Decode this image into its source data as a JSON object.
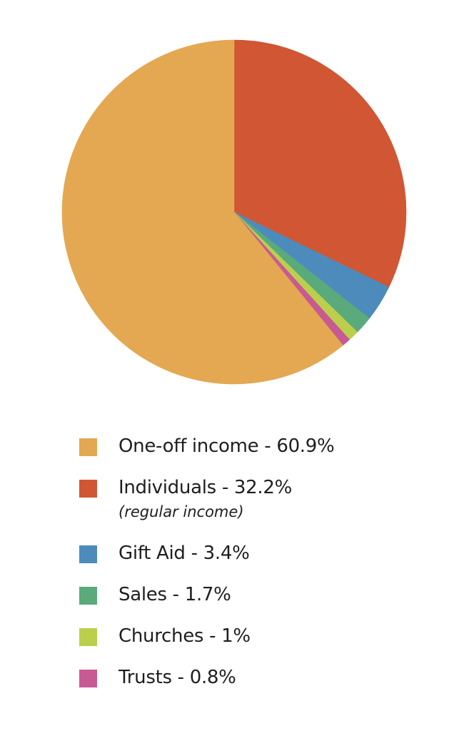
{
  "chart_data": {
    "type": "pie",
    "title": "",
    "slices": [
      {
        "label": "Individuals - 32.2%",
        "sublabel": "(regular income)",
        "value": 32.2,
        "color": "#d05634"
      },
      {
        "label": "Gift Aid - 3.4%",
        "value": 3.4,
        "color": "#4d8bbd"
      },
      {
        "label": "Sales - 1.7%",
        "value": 1.7,
        "color": "#5aaa7c"
      },
      {
        "label": "Churches - 1%",
        "value": 1.0,
        "color": "#bccf4c"
      },
      {
        "label": "Trusts - 0.8%",
        "value": 0.8,
        "color": "#c85a93"
      },
      {
        "label": "One-off income - 60.9%",
        "value": 60.9,
        "color": "#e3a851"
      }
    ],
    "legend_order": [
      5,
      0,
      1,
      2,
      3,
      4
    ],
    "legend_placement": "bottom"
  }
}
